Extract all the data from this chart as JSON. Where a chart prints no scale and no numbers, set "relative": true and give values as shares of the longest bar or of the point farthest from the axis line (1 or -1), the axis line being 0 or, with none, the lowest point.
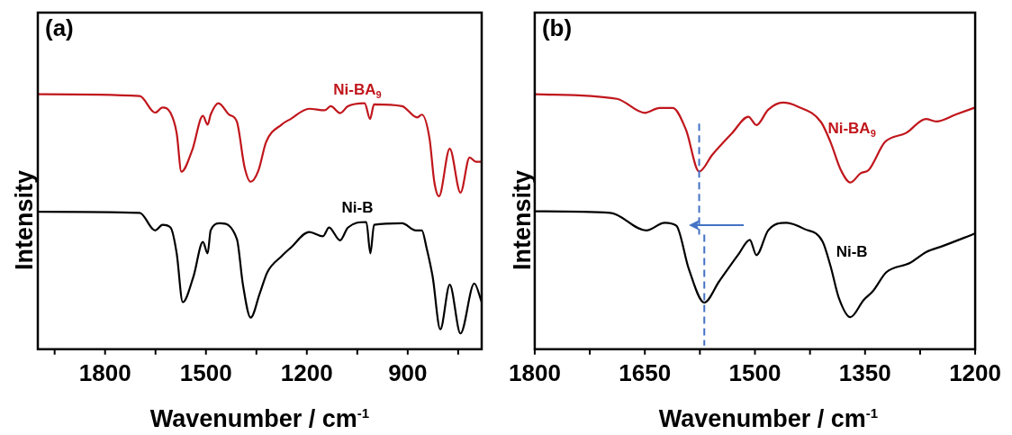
{
  "chart_data": [
    {
      "type": "line",
      "title": "(a)",
      "xlabel": "Wavenumber / cm$^{-1}$",
      "ylabel": "Intensity",
      "relative": true,
      "xlim": [
        2000,
        680
      ],
      "xticks": [
        {
          "value": 1950,
          "label": null
        },
        1800,
        {
          "value": 1650,
          "label": null
        },
        1500,
        {
          "value": 1350,
          "label": null
        },
        1200,
        {
          "value": 1050,
          "label": null
        },
        900,
        {
          "value": 750,
          "label": null
        }
      ],
      "x": [
        2000,
        1697,
        1651,
        1629,
        1605,
        1587,
        1573,
        1541,
        1509,
        1495,
        1486,
        1463,
        1431,
        1408,
        1385,
        1367,
        1344,
        1321,
        1275,
        1248,
        1193,
        1147,
        1129,
        1101,
        1078,
        1028,
        1012,
        1000,
        917,
        872,
        858,
        835,
        821,
        807,
        775,
        743,
        716,
        697,
        680
      ],
      "series": [
        {
          "name": "Ni-BA$_{9}$",
          "color": "#c0161c",
          "values": [
            1.0,
            0.993,
            0.928,
            0.948,
            0.926,
            0.847,
            0.696,
            0.78,
            0.915,
            0.881,
            0.92,
            0.965,
            0.92,
            0.892,
            0.713,
            0.657,
            0.701,
            0.813,
            0.881,
            0.903,
            0.943,
            0.937,
            0.953,
            0.926,
            0.953,
            0.965,
            0.903,
            0.96,
            0.953,
            0.909,
            0.92,
            0.825,
            0.657,
            0.6,
            0.786,
            0.614,
            0.752,
            0.735,
            0.735
          ]
        },
        {
          "name": "Ni-B",
          "color": "#000000",
          "x": [
            2000,
            1697,
            1651,
            1629,
            1605,
            1587,
            1569,
            1537,
            1509,
            1495,
            1486,
            1458,
            1408,
            1390,
            1367,
            1340,
            1317,
            1275,
            1248,
            1193,
            1152,
            1134,
            1101,
            1078,
            1023,
            1011,
            1000,
            917,
            876,
            858,
            844,
            826,
            803,
            775,
            743,
            702,
            680
          ],
          "values": [
            0.539,
            0.535,
            0.466,
            0.488,
            0.477,
            0.376,
            0.185,
            0.286,
            0.421,
            0.376,
            0.466,
            0.494,
            0.432,
            0.253,
            0.124,
            0.219,
            0.303,
            0.365,
            0.398,
            0.46,
            0.443,
            0.477,
            0.427,
            0.477,
            0.499,
            0.376,
            0.488,
            0.494,
            0.466,
            0.466,
            0.398,
            0.286,
            0.078,
            0.253,
            0.062,
            0.258,
            0.185
          ]
        }
      ],
      "tick_labels": "x",
      "grid": false,
      "legend": false,
      "marker": "none",
      "line_style": "solid"
    },
    {
      "type": "line",
      "title": "(b)",
      "xlabel": "Wavenumber / cm$^{-1}$",
      "ylabel": "Intensity",
      "relative": true,
      "xlim": [
        1800,
        1200
      ],
      "xticks": [
        1800,
        {
          "value": 1725,
          "label": null
        },
        1650,
        {
          "value": 1575,
          "label": null
        },
        1500,
        {
          "value": 1425,
          "label": null
        },
        1350,
        {
          "value": 1275,
          "label": null
        },
        1200
      ],
      "x": [
        1800,
        1688,
        1650,
        1630,
        1612,
        1594,
        1576,
        1558,
        1531,
        1509,
        1498,
        1482,
        1462,
        1442,
        1410,
        1397,
        1383,
        1370,
        1356,
        1345,
        1323,
        1294,
        1267,
        1253,
        1226,
        1200
      ],
      "series": [
        {
          "name": "Ni-BA$_{9}$",
          "color": "#c0161c",
          "values": [
            1.0,
            0.982,
            0.927,
            0.946,
            0.946,
            0.861,
            0.697,
            0.763,
            0.848,
            0.912,
            0.879,
            0.939,
            0.967,
            0.952,
            0.891,
            0.812,
            0.703,
            0.654,
            0.69,
            0.703,
            0.812,
            0.848,
            0.903,
            0.893,
            0.921,
            0.948
          ]
        },
        {
          "name": "Ni-B",
          "color": "#000000",
          "x": [
            1800,
            1697,
            1648,
            1623,
            1607,
            1590,
            1569,
            1549,
            1522,
            1507,
            1498,
            1482,
            1457,
            1433,
            1408,
            1397,
            1386,
            1370,
            1352,
            1339,
            1321,
            1289,
            1267,
            1244,
            1200
          ],
          "values": [
            0.541,
            0.535,
            0.466,
            0.496,
            0.484,
            0.314,
            0.183,
            0.265,
            0.374,
            0.429,
            0.369,
            0.466,
            0.496,
            0.472,
            0.423,
            0.326,
            0.204,
            0.126,
            0.193,
            0.229,
            0.302,
            0.338,
            0.381,
            0.405,
            0.454
          ]
        }
      ],
      "ref_lines": [
        {
          "axis": "x",
          "value": 1576,
          "color": "#4472c4",
          "line_style": "dashed"
        },
        {
          "axis": "x",
          "value": 1569,
          "color": "#4472c4",
          "line_style": "dashed"
        }
      ],
      "tick_labels": "x",
      "grid": false,
      "legend": false,
      "marker": "none",
      "line_style": "solid"
    }
  ]
}
